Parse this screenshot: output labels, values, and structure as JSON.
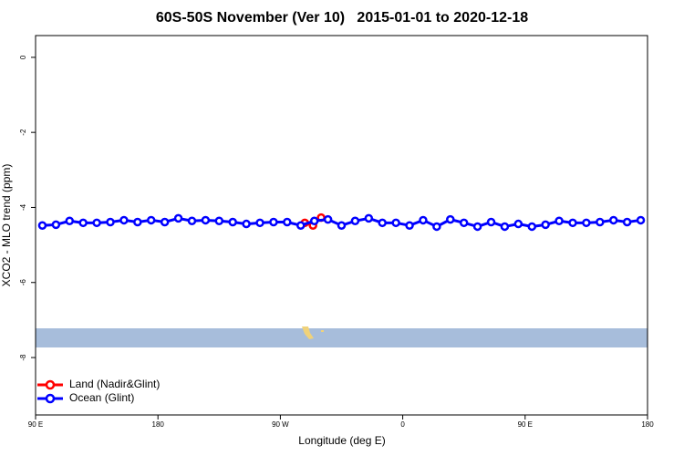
{
  "chart_data": {
    "type": "line",
    "title": "60S-50S November (Ver 10)   2015-01-01 to 2020-12-18",
    "x_label": "Longitude (deg E)",
    "y_label": "XCO2 - MLO trend (ppm)",
    "xlim": [
      90,
      540
    ],
    "ylim": [
      -9.53,
      0.58
    ],
    "xticks": [
      {
        "value": 90,
        "label": "90 E"
      },
      180,
      {
        "value": 270,
        "label": "90 W"
      },
      {
        "value": 360,
        "label": "0"
      },
      {
        "value": 450,
        "label": "90 E"
      },
      {
        "value": 540,
        "label": "180"
      }
    ],
    "yticks": [
      0,
      -2,
      -4,
      -6,
      -8
    ],
    "legend_position": "bottomleft",
    "series": [
      {
        "name": "Land (Nadir&Glint)",
        "color": "#ff0000",
        "x": [
          288,
          294,
          300
        ],
        "values": [
          -4.41,
          -4.48,
          -4.27
        ]
      },
      {
        "name": "Ocean (Glint)",
        "color": "#0000ff",
        "x": [
          95,
          105,
          115,
          125,
          135,
          145,
          155,
          165,
          175,
          185,
          195,
          205,
          215,
          225,
          235,
          245,
          255,
          265,
          275,
          285,
          295,
          305,
          315,
          325,
          335,
          345,
          355,
          365,
          375,
          385,
          395,
          405,
          415,
          425,
          435,
          445,
          455,
          465,
          475,
          485,
          495,
          505,
          515,
          525,
          535
        ],
        "values": [
          -4.48,
          -4.46,
          -4.36,
          -4.41,
          -4.41,
          -4.39,
          -4.34,
          -4.39,
          -4.34,
          -4.39,
          -4.29,
          -4.36,
          -4.34,
          -4.36,
          -4.39,
          -4.44,
          -4.41,
          -4.39,
          -4.39,
          -4.48,
          -4.36,
          -4.32,
          -4.48,
          -4.36,
          -4.29,
          -4.41,
          -4.41,
          -4.48,
          -4.34,
          -4.51,
          -4.32,
          -4.41,
          -4.51,
          -4.39,
          -4.51,
          -4.44,
          -4.51,
          -4.46,
          -4.36,
          -4.41,
          -4.41,
          -4.39,
          -4.34,
          -4.39,
          -4.34
        ]
      }
    ]
  }
}
